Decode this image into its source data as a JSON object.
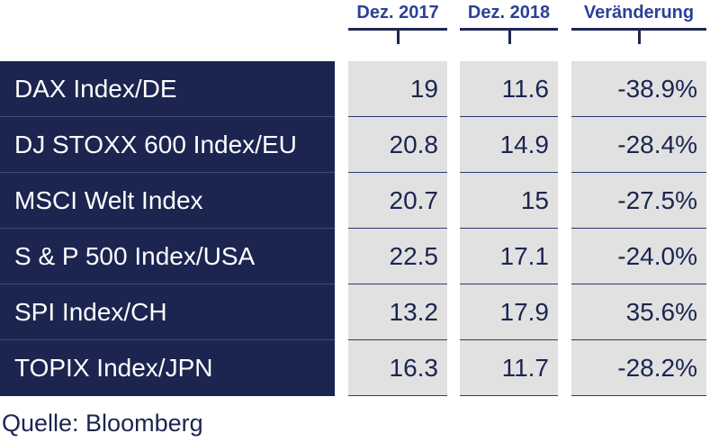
{
  "chart_data": {
    "type": "table",
    "columns": [
      "Dez. 2017",
      "Dez. 2018",
      "Veränderung"
    ],
    "rows": [
      {
        "label": "DAX Index/DE",
        "values": [
          "19",
          "11.6",
          "-38.9%"
        ]
      },
      {
        "label": "DJ STOXX 600 Index/EU",
        "values": [
          "20.8",
          "14.9",
          "-28.4%"
        ]
      },
      {
        "label": "MSCI Welt Index",
        "values": [
          "20.7",
          "15",
          "-27.5%"
        ]
      },
      {
        "label": "S & P 500 Index/USA",
        "values": [
          "22.5",
          "17.1",
          "-24.0%"
        ]
      },
      {
        "label": "SPI Index/CH",
        "values": [
          "13.2",
          "17.9",
          "35.6%"
        ]
      },
      {
        "label": "TOPIX Index/JPN",
        "values": [
          "16.3",
          "11.7",
          "-28.2%"
        ]
      }
    ],
    "source": "Quelle: Bloomberg"
  },
  "colors": {
    "header_text": "#2c4199",
    "row_label_background": "#1b2550",
    "row_label_text": "#ffffff",
    "cell_background": "#e1e1e1",
    "cell_text": "#1b2550",
    "rule": "#1e2750"
  }
}
